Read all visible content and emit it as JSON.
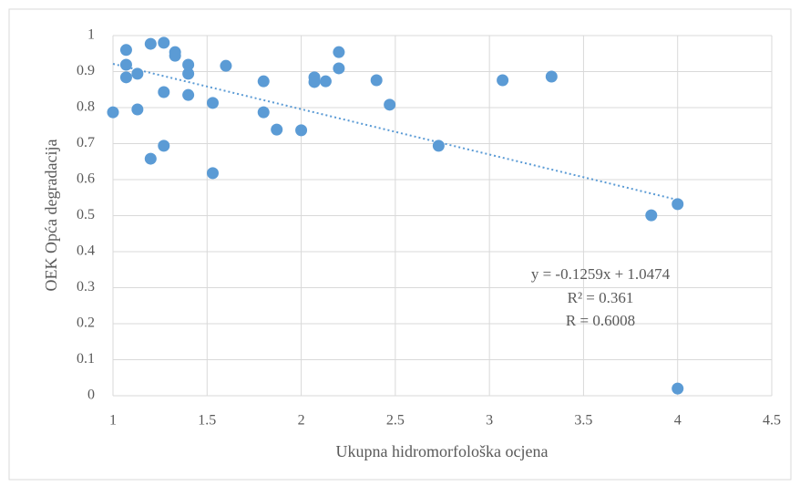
{
  "chart_data": {
    "type": "scatter",
    "x_label": "Ukupna hidromorfološka ocjena",
    "y_label": "OEK Opća degradacija",
    "series": [
      {
        "color": "#5b9bd5",
        "x": [
          1.0,
          1.07,
          1.07,
          1.07,
          1.13,
          1.13,
          1.2,
          1.2,
          1.27,
          1.27,
          1.27,
          1.33,
          1.33,
          1.4,
          1.4,
          1.4,
          1.53,
          1.53,
          1.6,
          1.8,
          1.8,
          1.87,
          2.0,
          2.07,
          2.07,
          2.13,
          2.2,
          2.2,
          2.4,
          2.47,
          2.73,
          3.07,
          3.33,
          3.86,
          4.0,
          4.0
        ],
        "values": [
          0.787,
          0.96,
          0.919,
          0.884,
          0.894,
          0.795,
          0.977,
          0.658,
          0.98,
          0.843,
          0.694,
          0.954,
          0.944,
          0.919,
          0.894,
          0.835,
          0.813,
          0.618,
          0.916,
          0.873,
          0.787,
          0.739,
          0.737,
          0.884,
          0.871,
          0.873,
          0.954,
          0.909,
          0.876,
          0.808,
          0.694,
          0.876,
          0.886,
          0.501,
          0.532,
          0.02
        ]
      }
    ],
    "trendline": {
      "slope": -0.1259,
      "intercept": 1.0474,
      "color": "#5b9bd5"
    },
    "annotations": [
      "y = -0.1259x + 1.0474",
      "R² = 0.361",
      "R = 0.6008"
    ],
    "xlim": [
      1,
      4.5
    ],
    "xticks": [
      1,
      1.5,
      2,
      2.5,
      3,
      3.5,
      4,
      4.5
    ],
    "ylim": [
      0,
      1
    ],
    "yticks": [
      0,
      0.1,
      0.2,
      0.3,
      0.4,
      0.5,
      0.6,
      0.7,
      0.8,
      0.9,
      1
    ],
    "grid": true
  }
}
